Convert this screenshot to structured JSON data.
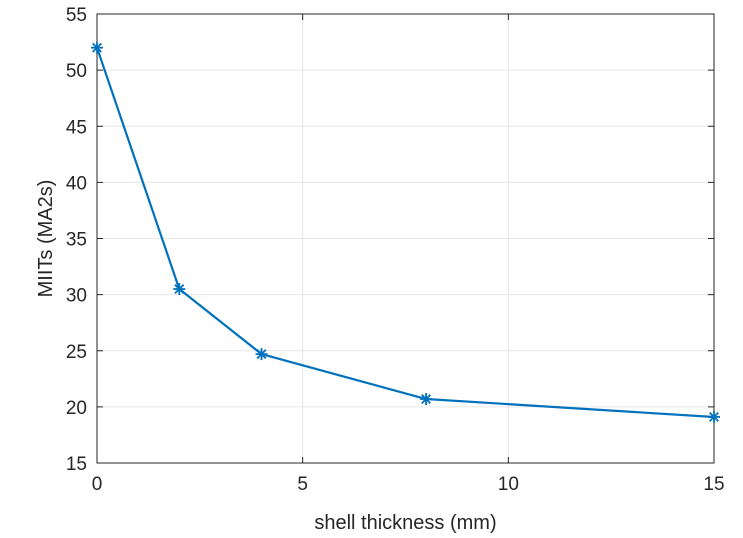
{
  "chart_data": {
    "type": "line",
    "title": "",
    "xlabel": "shell thickness (mm)",
    "ylabel": "MIITs (MA2s)",
    "xlim": [
      0,
      15
    ],
    "ylim": [
      15,
      55
    ],
    "xticks": [
      0,
      5,
      10,
      15
    ],
    "yticks": [
      15,
      20,
      25,
      30,
      35,
      40,
      45,
      50,
      55
    ],
    "grid": true,
    "marker": "asterisk",
    "series": [
      {
        "x": [
          0,
          2,
          4,
          8,
          15
        ],
        "y": [
          52.0,
          30.5,
          24.7,
          20.7,
          19.1
        ]
      }
    ],
    "colors": {
      "line": "#0072BD",
      "grid": "#e6e6e6",
      "axis": "#262626",
      "text": "#262626"
    }
  }
}
